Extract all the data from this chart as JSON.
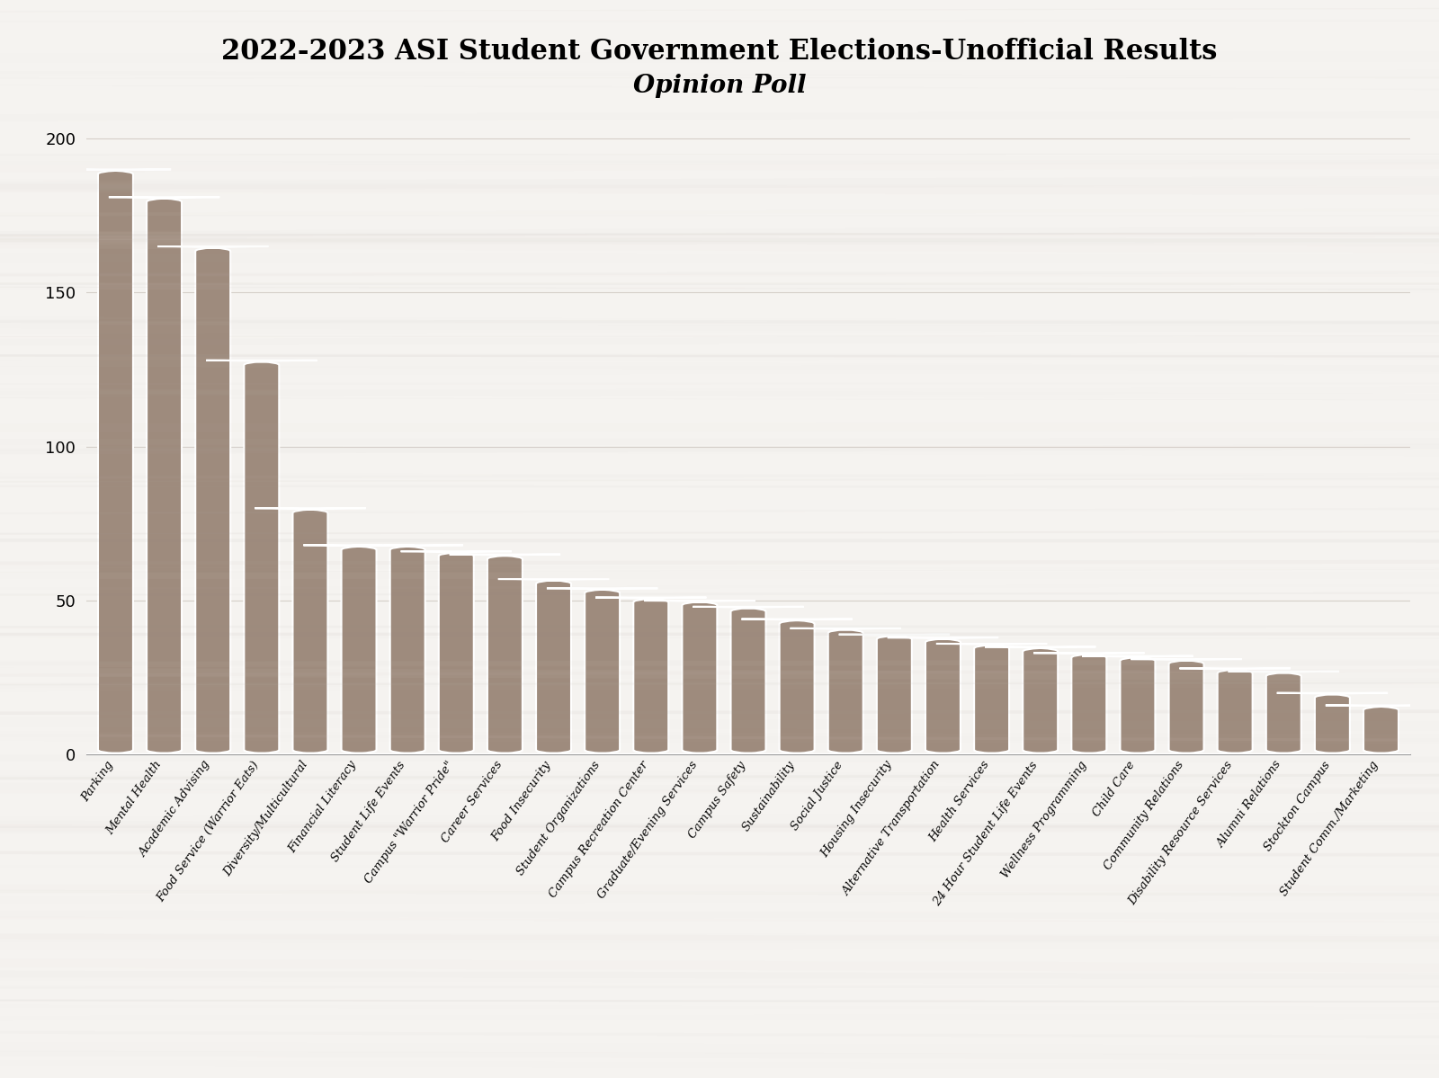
{
  "title_line1": "2022-2023 ASI Student Government Elections-Unofficial Results",
  "title_line2": "Opinion Poll",
  "categories": [
    "Parking",
    "Mental Health",
    "Academic Advising",
    "Food Service (Warrior Eats)",
    "Diversity/Multicultural",
    "Financial Literacy",
    "Student Life Events",
    "Campus \"Warrior Pride\"",
    "Career Services",
    "Food Insecurity",
    "Student Organizations",
    "Campus Recreation Center",
    "Graduate/Evening Services",
    "Campus Safety",
    "Sustainability",
    "Social Justice",
    "Housing Insecurity",
    "Alternative Transportation",
    "Health Services",
    "24 Hour Student Life Events",
    "Wellness Programming",
    "Child Care",
    "Community Relations",
    "Disability Resource Services",
    "Alumni Relations",
    "Stockton Campus",
    "Student Comm./Marketing"
  ],
  "values": [
    190,
    181,
    165,
    128,
    80,
    68,
    68,
    66,
    65,
    57,
    54,
    51,
    50,
    48,
    44,
    41,
    39,
    38,
    36,
    35,
    33,
    32,
    31,
    28,
    27,
    20,
    16
  ],
  "bar_color": "#9e8b7d",
  "background_color": "#f0eeeb",
  "ylim": [
    0,
    210
  ],
  "yticks": [
    0,
    50,
    100,
    150,
    200
  ],
  "title_fontsize": 22,
  "subtitle_fontsize": 20,
  "tick_fontsize": 11
}
